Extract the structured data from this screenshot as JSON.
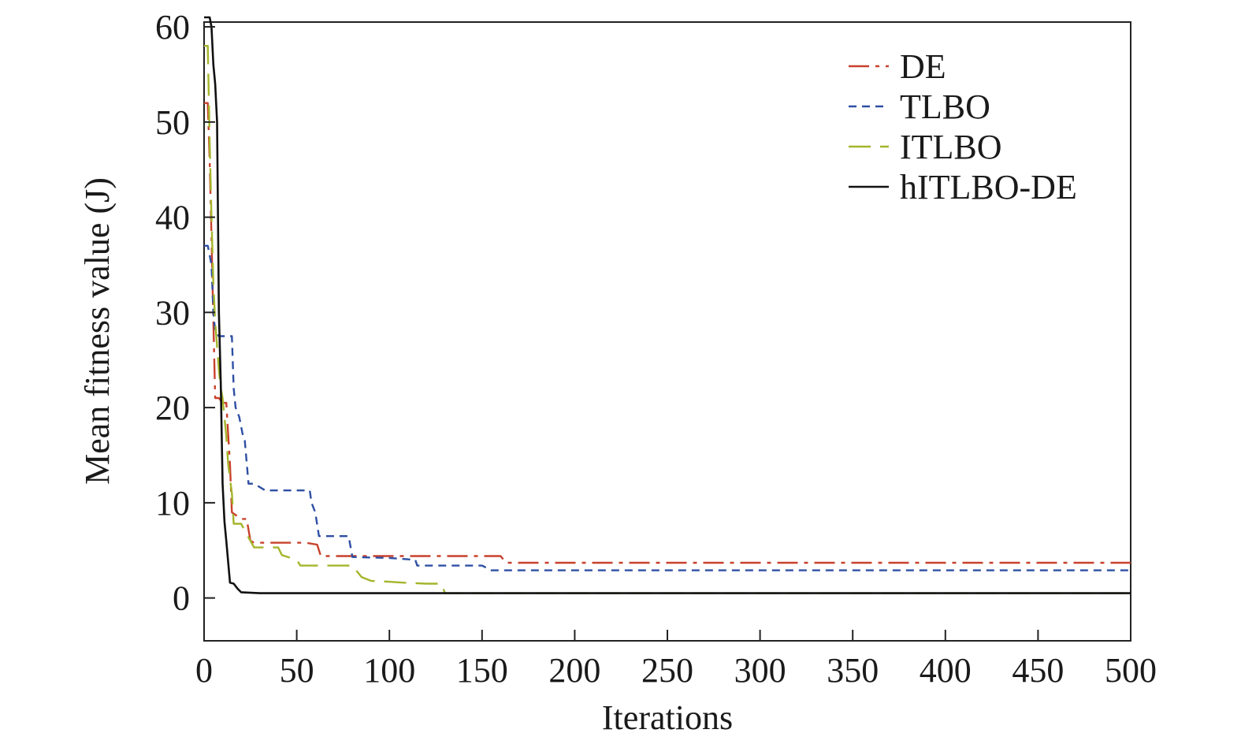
{
  "chart_data": {
    "type": "line",
    "title": "",
    "xlabel": "Iterations",
    "ylabel": "Mean fitness value (J)",
    "xlim": [
      0,
      500
    ],
    "ylim": [
      -4.5,
      60.5
    ],
    "xticks": [
      0,
      50,
      100,
      150,
      200,
      250,
      300,
      350,
      400,
      450,
      500
    ],
    "yticks": [
      0,
      10,
      20,
      30,
      40,
      50,
      60
    ],
    "grid": false,
    "legend_position": "top-right",
    "series": [
      {
        "name": "DE",
        "color": "#c8412c",
        "dash": "dashdot",
        "x": [
          0,
          2,
          3,
          4,
          5,
          6,
          8,
          10,
          12,
          14,
          15,
          20,
          23,
          25,
          27,
          55,
          61,
          63,
          80,
          120,
          160,
          163,
          165,
          500
        ],
        "y": [
          52,
          52,
          46,
          38,
          29,
          21,
          21,
          20.5,
          20.5,
          14,
          9,
          8.3,
          8.3,
          6,
          5.8,
          5.8,
          5.6,
          4.4,
          4.4,
          4.4,
          4.4,
          3.7,
          3.7,
          3.7
        ]
      },
      {
        "name": "TLBO",
        "color": "#2e4fa3",
        "dash": "dash",
        "x": [
          0,
          2,
          3,
          4,
          5,
          6,
          8,
          12,
          15,
          16,
          17,
          19,
          21,
          22,
          24,
          27,
          33,
          57,
          58,
          60,
          62,
          70,
          78,
          80,
          100,
          114,
          115,
          150,
          155,
          500
        ],
        "y": [
          37,
          37,
          36,
          35,
          30,
          28,
          27.5,
          27.5,
          27.5,
          22,
          20,
          19,
          17,
          16.5,
          12,
          12,
          11.3,
          11.3,
          10,
          9,
          6.5,
          6.5,
          6.5,
          4.3,
          4.2,
          4.0,
          3.4,
          3.4,
          2.9,
          2.9
        ]
      },
      {
        "name": "ITLBO",
        "color": "#a5b52b",
        "dash": "longdash",
        "x": [
          0,
          2,
          3,
          4,
          5,
          6,
          8,
          9,
          10,
          12,
          13,
          15,
          16,
          20,
          25,
          27,
          40,
          42,
          50,
          52,
          70,
          80,
          85,
          90,
          100,
          108,
          120,
          128,
          130,
          150,
          200,
          500
        ],
        "y": [
          58,
          58,
          48,
          40,
          33,
          29,
          24,
          22,
          21,
          17,
          14,
          11,
          7.8,
          7.8,
          6,
          5.3,
          5.3,
          4.5,
          4.0,
          3.4,
          3.4,
          3.4,
          2.2,
          1.8,
          1.7,
          1.6,
          1.5,
          1.5,
          0.5,
          0.5,
          0.5,
          0.5
        ]
      },
      {
        "name": "hITLBO-DE",
        "color": "#111111",
        "dash": "solid",
        "x": [
          0,
          3,
          4,
          5,
          6,
          7,
          8,
          9,
          10,
          11,
          12,
          14,
          16,
          18,
          20,
          30,
          500
        ],
        "y": [
          61,
          61,
          60,
          56,
          54,
          50,
          30,
          22.5,
          12,
          8,
          6,
          1.6,
          1.5,
          1.0,
          0.6,
          0.5,
          0.5
        ]
      }
    ]
  }
}
